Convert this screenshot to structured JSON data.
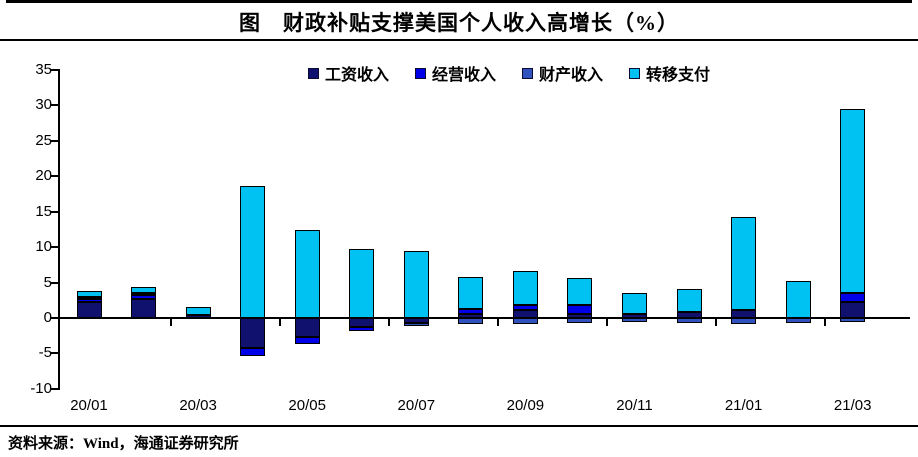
{
  "header": {
    "title": "图　财政补贴支撑美国个人收入高增长（%）"
  },
  "footer": {
    "source": "资料来源：Wind，海通证券研究所"
  },
  "chart_data": {
    "type": "bar",
    "stacked": true,
    "title": "财政补贴支撑美国个人收入高增长（%）",
    "ylabel": "",
    "xlabel": "",
    "ylim": [
      -10,
      35
    ],
    "y_ticks": [
      35,
      30,
      25,
      20,
      15,
      10,
      5,
      0,
      -5,
      -10
    ],
    "grid": false,
    "legend_position": "top",
    "categories": [
      "20/01",
      "20/02",
      "20/03",
      "20/04",
      "20/05",
      "20/06",
      "20/07",
      "20/08",
      "20/09",
      "20/10",
      "20/11",
      "20/12",
      "21/01",
      "21/02",
      "21/03"
    ],
    "x_tick_labels": [
      "20/01",
      "20/03",
      "20/05",
      "20/07",
      "20/09",
      "20/11",
      "21/01",
      "21/03"
    ],
    "series": [
      {
        "name": "工资收入",
        "key": "wage-income",
        "color": "#10106E",
        "values": [
          2.3,
          2.7,
          0.4,
          -4.2,
          -2.7,
          -1.3,
          -0.7,
          0.6,
          1.1,
          0.6,
          0.6,
          0.9,
          1.1,
          0.0,
          2.3
        ]
      },
      {
        "name": "经营收入",
        "key": "business-income",
        "color": "#0000E8",
        "values": [
          0.4,
          0.6,
          0.0,
          -1.1,
          -0.9,
          -0.5,
          0.0,
          0.7,
          0.8,
          1.3,
          0.0,
          0.0,
          0.0,
          0.0,
          1.2
        ]
      },
      {
        "name": "财产收入",
        "key": "property-income",
        "color": "#2F52BE",
        "values": [
          0.2,
          0.2,
          0.0,
          0.0,
          0.0,
          0.0,
          -0.4,
          -0.8,
          -0.8,
          -0.7,
          -0.6,
          -0.7,
          -0.8,
          -0.7,
          -0.6
        ]
      },
      {
        "name": "转移支付",
        "key": "transfer-payments",
        "color": "#00C2F2",
        "values": [
          0.9,
          0.9,
          1.2,
          18.6,
          12.4,
          9.7,
          9.5,
          4.5,
          4.8,
          3.7,
          2.9,
          3.2,
          13.1,
          5.2,
          26.0
        ]
      }
    ]
  }
}
